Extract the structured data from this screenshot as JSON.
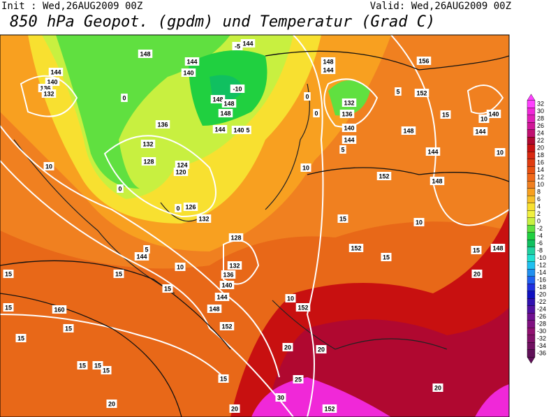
{
  "header": {
    "init": "Init : Wed,26AUG2009 00Z",
    "valid": "Valid: Wed,26AUG2009 00Z",
    "title": "850 hPa Geopot. (gpdm) und Temperatur (Grad C)"
  },
  "colorbar": {
    "levels": [
      32,
      30,
      28,
      26,
      24,
      22,
      20,
      18,
      16,
      14,
      12,
      10,
      8,
      6,
      4,
      2,
      0,
      -2,
      -4,
      -6,
      -8,
      -10,
      -12,
      -14,
      -16,
      -18,
      -20,
      -22,
      -24,
      -26,
      -28,
      -30,
      -32,
      -34,
      -36
    ],
    "colors": [
      "#ff40ff",
      "#f028d8",
      "#e020b8",
      "#d01898",
      "#c01070",
      "#b00830",
      "#c81010",
      "#d82810",
      "#e03c10",
      "#e85010",
      "#f06818",
      "#f08020",
      "#f8a020",
      "#f8c028",
      "#f8e030",
      "#f0f040",
      "#c8f040",
      "#60e040",
      "#20d040",
      "#10c060",
      "#20d0a0",
      "#20e0d0",
      "#20c0f0",
      "#2090f0",
      "#2060f0",
      "#2030e0",
      "#1010c0",
      "#3010b0",
      "#5010a0",
      "#701090",
      "#801080",
      "#901070",
      "#801068",
      "#701060",
      "#601058"
    ]
  },
  "map_labels": [
    "148",
    "144",
    "-5",
    "144",
    "140",
    "136",
    "132",
    "144",
    "140",
    "-10",
    "148",
    "148",
    "148",
    "144",
    "140",
    "136",
    "132",
    "128",
    "124",
    "120",
    "126",
    "132",
    "128",
    "132",
    "136",
    "140",
    "144",
    "148",
    "152",
    "160",
    "152",
    "152",
    "148",
    "144",
    "132",
    "136",
    "140",
    "144",
    "152",
    "156",
    "148",
    "144",
    "148",
    "152",
    "140",
    "144",
    "148",
    "152",
    "144",
    "10",
    "15",
    "15",
    "15",
    "15",
    "15",
    "15",
    "15",
    "15",
    "15",
    "15",
    "15",
    "15",
    "15",
    "15",
    "20",
    "20",
    "20",
    "20",
    "20",
    "20",
    "25",
    "30",
    "10",
    "10",
    "10",
    "10",
    "10",
    "10",
    "5",
    "5",
    "5",
    "5",
    "0",
    "0",
    "0",
    "0",
    "0"
  ]
}
